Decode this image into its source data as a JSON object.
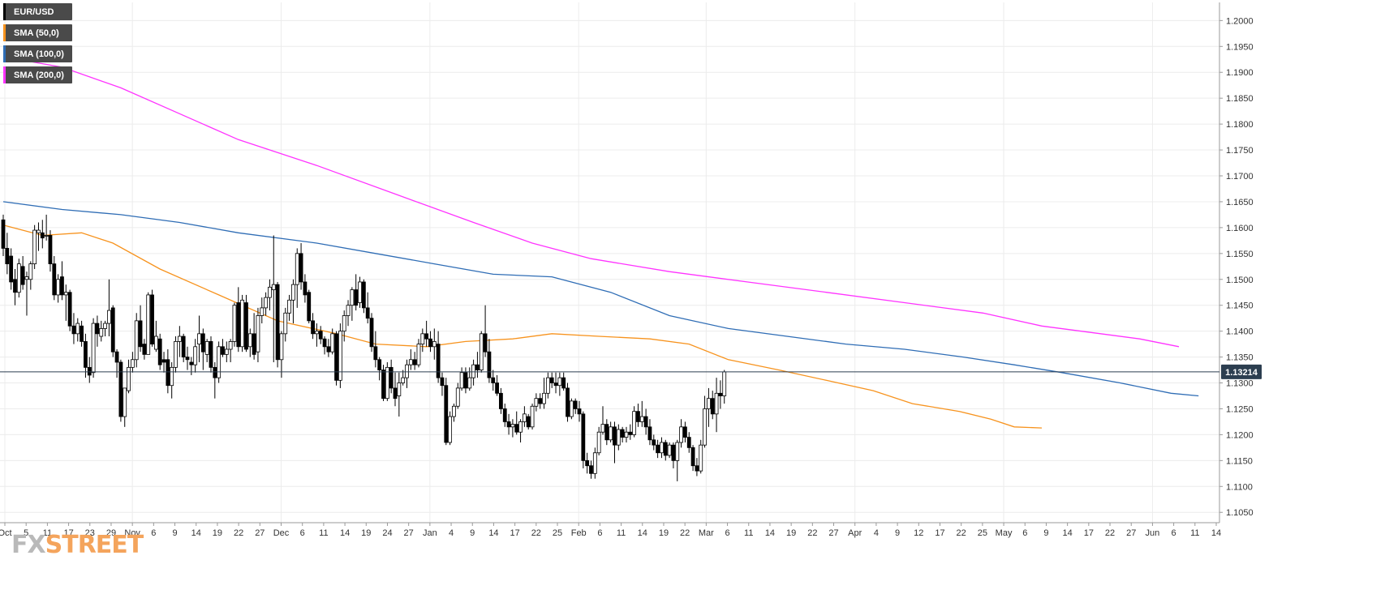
{
  "chart_data": {
    "type": "candlestick",
    "symbol": "EUR/USD",
    "legend": [
      {
        "label": "EUR/USD",
        "color": "#000000"
      },
      {
        "label": "SMA (50,0)",
        "color": "#f7931e"
      },
      {
        "label": "SMA (100,0)",
        "color": "#2f6db5"
      },
      {
        "label": "SMA (200,0)",
        "color": "#ff33ff"
      }
    ],
    "ylim": [
      1.103,
      1.2035
    ],
    "y_ticks": [
      "1.2000",
      "1.1950",
      "1.1900",
      "1.1850",
      "1.1800",
      "1.1750",
      "1.1700",
      "1.1650",
      "1.1600",
      "1.1550",
      "1.1500",
      "1.1450",
      "1.1400",
      "1.1350",
      "1.1300",
      "1.1250",
      "1.1200",
      "1.1150",
      "1.1100",
      "1.1050"
    ],
    "x_ticks": [
      "Oct",
      "5",
      "11",
      "17",
      "23",
      "29",
      "Nov",
      "6",
      "9",
      "14",
      "19",
      "22",
      "27",
      "Dec",
      "6",
      "11",
      "14",
      "19",
      "24",
      "27",
      "Jan",
      "4",
      "9",
      "14",
      "17",
      "22",
      "25",
      "Feb",
      "6",
      "11",
      "14",
      "19",
      "22",
      "Mar",
      "6",
      "11",
      "14",
      "19",
      "22",
      "27",
      "Apr",
      "4",
      "9",
      "12",
      "17",
      "22",
      "25",
      "May",
      "6",
      "9",
      "14",
      "17",
      "22",
      "27",
      "Jun",
      "6",
      "11",
      "14"
    ],
    "last_price": "1.13214",
    "last_price_value": 1.13214,
    "ohlc": [
      [
        1.1615,
        1.1625,
        1.1545,
        1.156
      ],
      [
        1.156,
        1.159,
        1.151,
        1.153
      ],
      [
        1.1545,
        1.156,
        1.148,
        1.1495
      ],
      [
        1.15,
        1.152,
        1.145,
        1.1475
      ],
      [
        1.1475,
        1.154,
        1.1465,
        1.153
      ],
      [
        1.1525,
        1.1545,
        1.148,
        1.149
      ],
      [
        1.15,
        1.1515,
        1.143,
        1.1505
      ],
      [
        1.15,
        1.1535,
        1.148,
        1.153
      ],
      [
        1.153,
        1.1605,
        1.152,
        1.1595
      ],
      [
        1.159,
        1.161,
        1.1555,
        1.1595
      ],
      [
        1.159,
        1.1615,
        1.156,
        1.158
      ],
      [
        1.1585,
        1.1625,
        1.1575,
        1.1585
      ],
      [
        1.1585,
        1.1595,
        1.1515,
        1.153
      ],
      [
        1.153,
        1.1545,
        1.146,
        1.147
      ],
      [
        1.147,
        1.151,
        1.1455,
        1.15
      ],
      [
        1.1505,
        1.1535,
        1.146,
        1.147
      ],
      [
        1.147,
        1.149,
        1.142,
        1.1475
      ],
      [
        1.1475,
        1.148,
        1.14,
        1.141
      ],
      [
        1.141,
        1.1435,
        1.1375,
        1.1395
      ],
      [
        1.1395,
        1.1425,
        1.138,
        1.1415
      ],
      [
        1.141,
        1.142,
        1.137,
        1.138
      ],
      [
        1.138,
        1.1395,
        1.131,
        1.133
      ],
      [
        1.133,
        1.135,
        1.13,
        1.1315
      ],
      [
        1.132,
        1.1425,
        1.131,
        1.1415
      ],
      [
        1.1415,
        1.143,
        1.137,
        1.1395
      ],
      [
        1.139,
        1.142,
        1.138,
        1.1405
      ],
      [
        1.1405,
        1.142,
        1.139,
        1.1415
      ],
      [
        1.1415,
        1.15,
        1.139,
        1.144
      ],
      [
        1.1445,
        1.145,
        1.135,
        1.136
      ],
      [
        1.136,
        1.1365,
        1.131,
        1.134
      ],
      [
        1.134,
        1.1345,
        1.1225,
        1.1235
      ],
      [
        1.1235,
        1.129,
        1.1215,
        1.129
      ],
      [
        1.1285,
        1.1345,
        1.128,
        1.133
      ],
      [
        1.133,
        1.136,
        1.132,
        1.1345
      ],
      [
        1.1345,
        1.1435,
        1.133,
        1.142
      ],
      [
        1.142,
        1.145,
        1.136,
        1.137
      ],
      [
        1.1375,
        1.1385,
        1.1345,
        1.1355
      ],
      [
        1.1355,
        1.1475,
        1.1355,
        1.147
      ],
      [
        1.147,
        1.148,
        1.137,
        1.1375
      ],
      [
        1.1365,
        1.142,
        1.136,
        1.139
      ],
      [
        1.1385,
        1.1395,
        1.1325,
        1.1335
      ],
      [
        1.1345,
        1.136,
        1.132,
        1.134
      ],
      [
        1.1345,
        1.1365,
        1.128,
        1.1295
      ],
      [
        1.1295,
        1.134,
        1.127,
        1.133
      ],
      [
        1.133,
        1.139,
        1.132,
        1.138
      ],
      [
        1.138,
        1.141,
        1.135,
        1.139
      ],
      [
        1.139,
        1.1395,
        1.134,
        1.135
      ],
      [
        1.135,
        1.137,
        1.1325,
        1.1345
      ],
      [
        1.134,
        1.135,
        1.1315,
        1.1335
      ],
      [
        1.1335,
        1.1385,
        1.132,
        1.137
      ],
      [
        1.1375,
        1.143,
        1.134,
        1.1395
      ],
      [
        1.1395,
        1.1405,
        1.1325,
        1.136
      ],
      [
        1.1355,
        1.1385,
        1.134,
        1.138
      ],
      [
        1.138,
        1.139,
        1.132,
        1.133
      ],
      [
        1.133,
        1.134,
        1.127,
        1.131
      ],
      [
        1.131,
        1.138,
        1.13,
        1.137
      ],
      [
        1.137,
        1.1385,
        1.135,
        1.1355
      ],
      [
        1.1355,
        1.138,
        1.134,
        1.1365
      ],
      [
        1.1365,
        1.1385,
        1.134,
        1.138
      ],
      [
        1.138,
        1.1455,
        1.137,
        1.145
      ],
      [
        1.1455,
        1.1485,
        1.136,
        1.137
      ],
      [
        1.137,
        1.147,
        1.136,
        1.146
      ],
      [
        1.1455,
        1.147,
        1.136,
        1.1365
      ],
      [
        1.137,
        1.1405,
        1.135,
        1.1395
      ],
      [
        1.1395,
        1.1435,
        1.1345,
        1.1355
      ],
      [
        1.136,
        1.1445,
        1.134,
        1.143
      ],
      [
        1.143,
        1.1465,
        1.1415,
        1.1445
      ],
      [
        1.1445,
        1.1475,
        1.143,
        1.1465
      ],
      [
        1.1465,
        1.15,
        1.144,
        1.1485
      ],
      [
        1.148,
        1.1585,
        1.134,
        1.149
      ],
      [
        1.149,
        1.1495,
        1.133,
        1.1345
      ],
      [
        1.1345,
        1.14,
        1.131,
        1.1395
      ],
      [
        1.1395,
        1.1445,
        1.138,
        1.1435
      ],
      [
        1.1435,
        1.147,
        1.142,
        1.146
      ],
      [
        1.146,
        1.15,
        1.1415,
        1.149
      ],
      [
        1.149,
        1.156,
        1.1445,
        1.155
      ],
      [
        1.155,
        1.157,
        1.148,
        1.1495
      ],
      [
        1.1495,
        1.151,
        1.1455,
        1.147
      ],
      [
        1.1475,
        1.148,
        1.1415,
        1.142
      ],
      [
        1.142,
        1.1435,
        1.1385,
        1.1395
      ],
      [
        1.1395,
        1.1415,
        1.137,
        1.14
      ],
      [
        1.14,
        1.141,
        1.1375,
        1.1385
      ],
      [
        1.1385,
        1.139,
        1.1355,
        1.137
      ],
      [
        1.137,
        1.1385,
        1.135,
        1.136
      ],
      [
        1.136,
        1.1405,
        1.1355,
        1.1395
      ],
      [
        1.1395,
        1.14,
        1.1295,
        1.1305
      ],
      [
        1.1305,
        1.1415,
        1.129,
        1.14
      ],
      [
        1.14,
        1.144,
        1.138,
        1.143
      ],
      [
        1.143,
        1.146,
        1.141,
        1.145
      ],
      [
        1.145,
        1.1485,
        1.142,
        1.148
      ],
      [
        1.148,
        1.151,
        1.144,
        1.145
      ],
      [
        1.1455,
        1.1505,
        1.1445,
        1.1495
      ],
      [
        1.1495,
        1.15,
        1.1435,
        1.1445
      ],
      [
        1.1445,
        1.1475,
        1.1415,
        1.1425
      ],
      [
        1.1425,
        1.1435,
        1.136,
        1.137
      ],
      [
        1.137,
        1.14,
        1.133,
        1.1345
      ],
      [
        1.1345,
        1.135,
        1.1305,
        1.1325
      ],
      [
        1.1325,
        1.1335,
        1.1265,
        1.127
      ],
      [
        1.127,
        1.134,
        1.1265,
        1.133
      ],
      [
        1.133,
        1.1345,
        1.128,
        1.129
      ],
      [
        1.129,
        1.132,
        1.1255,
        1.127
      ],
      [
        1.1275,
        1.132,
        1.1235,
        1.13
      ],
      [
        1.13,
        1.1325,
        1.1295,
        1.131
      ],
      [
        1.131,
        1.1345,
        1.129,
        1.1335
      ],
      [
        1.1335,
        1.1365,
        1.1325,
        1.1345
      ],
      [
        1.1345,
        1.136,
        1.1325,
        1.1335
      ],
      [
        1.1335,
        1.1385,
        1.133,
        1.1375
      ],
      [
        1.1375,
        1.1405,
        1.136,
        1.1395
      ],
      [
        1.1395,
        1.142,
        1.137,
        1.1385
      ],
      [
        1.1385,
        1.14,
        1.136,
        1.137
      ],
      [
        1.137,
        1.1405,
        1.1345,
        1.138
      ],
      [
        1.1375,
        1.14,
        1.13,
        1.131
      ],
      [
        1.131,
        1.132,
        1.1275,
        1.1295
      ],
      [
        1.1295,
        1.131,
        1.118,
        1.1185
      ],
      [
        1.1185,
        1.1245,
        1.118,
        1.1235
      ],
      [
        1.1235,
        1.126,
        1.1225,
        1.1255
      ],
      [
        1.1255,
        1.13,
        1.125,
        1.129
      ],
      [
        1.129,
        1.133,
        1.1285,
        1.132
      ],
      [
        1.132,
        1.133,
        1.128,
        1.129
      ],
      [
        1.129,
        1.133,
        1.1285,
        1.131
      ],
      [
        1.131,
        1.1345,
        1.1295,
        1.1335
      ],
      [
        1.1335,
        1.136,
        1.131,
        1.1325
      ],
      [
        1.1325,
        1.14,
        1.132,
        1.1395
      ],
      [
        1.1395,
        1.145,
        1.135,
        1.136
      ],
      [
        1.136,
        1.1385,
        1.13,
        1.131
      ],
      [
        1.131,
        1.1325,
        1.1285,
        1.13
      ],
      [
        1.13,
        1.1315,
        1.1275,
        1.128
      ],
      [
        1.128,
        1.129,
        1.124,
        1.125
      ],
      [
        1.125,
        1.126,
        1.1215,
        1.1225
      ],
      [
        1.1225,
        1.124,
        1.12,
        1.1215
      ],
      [
        1.1215,
        1.123,
        1.1195,
        1.122
      ],
      [
        1.122,
        1.1245,
        1.12,
        1.1205
      ],
      [
        1.1205,
        1.123,
        1.1185,
        1.1225
      ],
      [
        1.1225,
        1.1255,
        1.1215,
        1.124
      ],
      [
        1.1235,
        1.124,
        1.121,
        1.1215
      ],
      [
        1.1215,
        1.126,
        1.121,
        1.1255
      ],
      [
        1.1255,
        1.128,
        1.1245,
        1.127
      ],
      [
        1.127,
        1.128,
        1.125,
        1.126
      ],
      [
        1.126,
        1.131,
        1.125,
        1.128
      ],
      [
        1.128,
        1.132,
        1.127,
        1.131
      ],
      [
        1.131,
        1.132,
        1.129,
        1.13
      ],
      [
        1.13,
        1.132,
        1.128,
        1.1295
      ],
      [
        1.1295,
        1.132,
        1.1275,
        1.131
      ],
      [
        1.131,
        1.132,
        1.1285,
        1.129
      ],
      [
        1.129,
        1.13,
        1.1225,
        1.1235
      ],
      [
        1.1235,
        1.127,
        1.123,
        1.1265
      ],
      [
        1.1265,
        1.127,
        1.124,
        1.125
      ],
      [
        1.125,
        1.1265,
        1.1225,
        1.124
      ],
      [
        1.124,
        1.1245,
        1.1135,
        1.115
      ],
      [
        1.115,
        1.1165,
        1.1125,
        1.114
      ],
      [
        1.114,
        1.115,
        1.1115,
        1.1125
      ],
      [
        1.1125,
        1.1175,
        1.1115,
        1.1165
      ],
      [
        1.1165,
        1.1215,
        1.116,
        1.1205
      ],
      [
        1.1205,
        1.1255,
        1.12,
        1.122
      ],
      [
        1.122,
        1.123,
        1.118,
        1.119
      ],
      [
        1.119,
        1.1225,
        1.1185,
        1.1215
      ],
      [
        1.1215,
        1.1225,
        1.1145,
        1.118
      ],
      [
        1.118,
        1.122,
        1.117,
        1.121
      ],
      [
        1.121,
        1.1215,
        1.1185,
        1.1195
      ],
      [
        1.1195,
        1.1215,
        1.1185,
        1.1205
      ],
      [
        1.1205,
        1.122,
        1.119,
        1.12
      ],
      [
        1.12,
        1.1255,
        1.1195,
        1.1245
      ],
      [
        1.1245,
        1.126,
        1.1215,
        1.1225
      ],
      [
        1.1225,
        1.1265,
        1.1215,
        1.1235
      ],
      [
        1.1235,
        1.125,
        1.12,
        1.1215
      ],
      [
        1.1215,
        1.123,
        1.118,
        1.119
      ],
      [
        1.119,
        1.12,
        1.117,
        1.118
      ],
      [
        1.118,
        1.119,
        1.1155,
        1.1165
      ],
      [
        1.1165,
        1.1195,
        1.1155,
        1.1185
      ],
      [
        1.1185,
        1.119,
        1.115,
        1.116
      ],
      [
        1.116,
        1.1185,
        1.1155,
        1.118
      ],
      [
        1.118,
        1.1185,
        1.1135,
        1.115
      ],
      [
        1.115,
        1.119,
        1.111,
        1.1185
      ],
      [
        1.1185,
        1.123,
        1.1175,
        1.1215
      ],
      [
        1.1215,
        1.1225,
        1.1185,
        1.1195
      ],
      [
        1.1195,
        1.1205,
        1.1165,
        1.1175
      ],
      [
        1.1175,
        1.118,
        1.113,
        1.114
      ],
      [
        1.114,
        1.1155,
        1.112,
        1.113
      ],
      [
        1.113,
        1.119,
        1.1125,
        1.118
      ],
      [
        1.118,
        1.1275,
        1.1175,
        1.125
      ],
      [
        1.125,
        1.129,
        1.1215,
        1.127
      ],
      [
        1.127,
        1.1285,
        1.123,
        1.124
      ],
      [
        1.124,
        1.131,
        1.1205,
        1.128
      ],
      [
        1.128,
        1.1305,
        1.125,
        1.1275
      ],
      [
        1.1275,
        1.1325,
        1.126,
        1.13214
      ]
    ],
    "sma50": [
      [
        0,
        1.1605
      ],
      [
        10,
        1.1585
      ],
      [
        20,
        1.159
      ],
      [
        28,
        1.157
      ],
      [
        40,
        1.152
      ],
      [
        55,
        1.147
      ],
      [
        70,
        1.142
      ],
      [
        85,
        1.1395
      ],
      [
        95,
        1.1375
      ],
      [
        108,
        1.137
      ],
      [
        118,
        1.138
      ],
      [
        130,
        1.1385
      ],
      [
        140,
        1.1395
      ],
      [
        152,
        1.139
      ],
      [
        165,
        1.1385
      ],
      [
        175,
        1.1375
      ],
      [
        185,
        1.1345
      ],
      [
        198,
        1.1325
      ],
      [
        210,
        1.1305
      ],
      [
        222,
        1.1285
      ],
      [
        232,
        1.126
      ],
      [
        244,
        1.1245
      ],
      [
        252,
        1.123
      ],
      [
        258,
        1.1215
      ],
      [
        265,
        1.1213
      ]
    ],
    "sma100": [
      [
        0,
        1.165
      ],
      [
        15,
        1.1635
      ],
      [
        30,
        1.1625
      ],
      [
        45,
        1.161
      ],
      [
        60,
        1.159
      ],
      [
        80,
        1.157
      ],
      [
        95,
        1.155
      ],
      [
        110,
        1.153
      ],
      [
        125,
        1.151
      ],
      [
        140,
        1.1505
      ],
      [
        155,
        1.1475
      ],
      [
        170,
        1.143
      ],
      [
        185,
        1.1405
      ],
      [
        200,
        1.139
      ],
      [
        215,
        1.1375
      ],
      [
        230,
        1.1365
      ],
      [
        245,
        1.135
      ],
      [
        258,
        1.1335
      ],
      [
        270,
        1.132
      ],
      [
        285,
        1.13
      ],
      [
        298,
        1.128
      ],
      [
        305,
        1.1275
      ]
    ],
    "sma200": [
      [
        0,
        1.193
      ],
      [
        15,
        1.191
      ],
      [
        30,
        1.187
      ],
      [
        45,
        1.182
      ],
      [
        60,
        1.177
      ],
      [
        80,
        1.172
      ],
      [
        100,
        1.1665
      ],
      [
        120,
        1.161
      ],
      [
        135,
        1.157
      ],
      [
        150,
        1.154
      ],
      [
        170,
        1.1515
      ],
      [
        190,
        1.1495
      ],
      [
        210,
        1.1475
      ],
      [
        230,
        1.1455
      ],
      [
        250,
        1.1435
      ],
      [
        265,
        1.141
      ],
      [
        280,
        1.1395
      ],
      [
        290,
        1.1385
      ],
      [
        300,
        1.137
      ]
    ],
    "grid": true
  },
  "watermark": {
    "fx": "FX",
    "street": "STREET"
  }
}
